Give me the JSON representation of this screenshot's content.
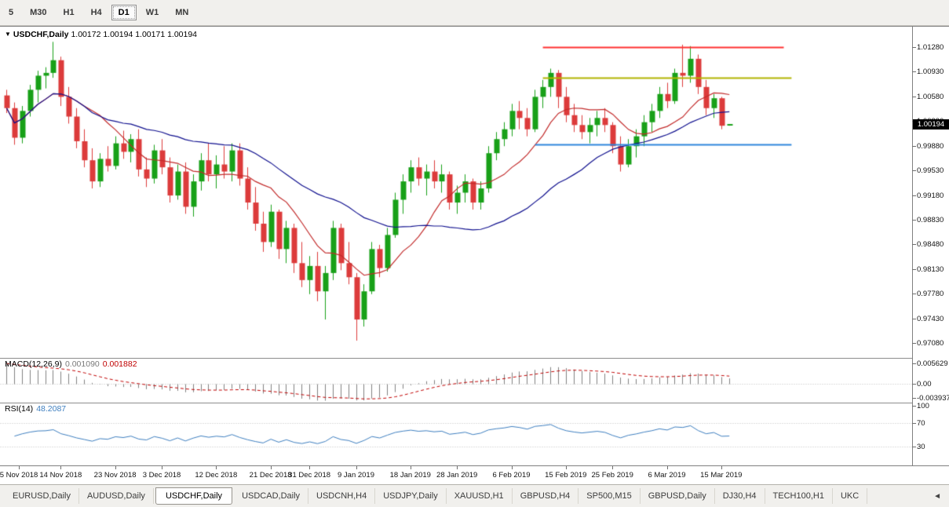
{
  "toolbar": {
    "timeframes": [
      {
        "label": "5",
        "active": false
      },
      {
        "label": "M30",
        "active": false
      },
      {
        "label": "H1",
        "active": false
      },
      {
        "label": "H4",
        "active": false
      },
      {
        "label": "D1",
        "active": true
      },
      {
        "label": "W1",
        "active": false
      },
      {
        "label": "MN",
        "active": false
      }
    ]
  },
  "chart": {
    "marker_glyph": "▼",
    "title": "USDCHF,Daily",
    "ohlc_text": "1.00172 1.00194 1.00171 1.00194",
    "current_price": "1.00194",
    "price_axis": [
      "1.01280",
      "1.00930",
      "1.00580",
      "1.00230",
      "0.99880",
      "0.99530",
      "0.99180",
      "0.98830",
      "0.98480",
      "0.98130",
      "0.97780",
      "0.97430",
      "0.97080"
    ]
  },
  "macd": {
    "label": "MACD(12,26,9)",
    "value_main": "0.001090",
    "value_signal": "0.001882",
    "axis": [
      "0.005629",
      "0.00",
      "-0.003937"
    ]
  },
  "rsi": {
    "label": "RSI(14)",
    "value": "48.2087",
    "axis": [
      "100",
      "70",
      "30"
    ],
    "levels": [
      70,
      30
    ],
    "color": "#3D7EBF"
  },
  "date_axis": [
    {
      "label": "5 Nov 2018",
      "index": 0
    },
    {
      "label": "14 Nov 2018",
      "index": 7
    },
    {
      "label": "23 Nov 2018",
      "index": 14
    },
    {
      "label": "3 Dec 2018",
      "index": 20
    },
    {
      "label": "12 Dec 2018",
      "index": 27
    },
    {
      "label": "21 Dec 2018",
      "index": 34
    },
    {
      "label": "31 Dec 2018",
      "index": 39
    },
    {
      "label": "9 Jan 2019",
      "index": 45
    },
    {
      "label": "18 Jan 2019",
      "index": 52
    },
    {
      "label": "28 Jan 2019",
      "index": 58
    },
    {
      "label": "6 Feb 2019",
      "index": 65
    },
    {
      "label": "15 Feb 2019",
      "index": 72
    },
    {
      "label": "25 Feb 2019",
      "index": 78
    },
    {
      "label": "6 Mar 2019",
      "index": 85
    },
    {
      "label": "15 Mar 2019",
      "index": 92
    }
  ],
  "tabbar": {
    "scroll_left_glyph": "◄",
    "tabs": [
      {
        "label": "EURUSD,Daily",
        "active": false
      },
      {
        "label": "AUDUSD,Daily",
        "active": false
      },
      {
        "label": "USDCHF,Daily",
        "active": true
      },
      {
        "label": "USDCAD,Daily",
        "active": false
      },
      {
        "label": "USDCNH,H4",
        "active": false
      },
      {
        "label": "USDJPY,Daily",
        "active": false
      },
      {
        "label": "XAUUSD,H1",
        "active": false
      },
      {
        "label": "GBPUSD,H4",
        "active": false
      },
      {
        "label": "SP500,M15",
        "active": false
      },
      {
        "label": "GBPUSD,Daily",
        "active": false
      },
      {
        "label": "DJ30,H4",
        "active": false
      },
      {
        "label": "TECH100,H1",
        "active": false
      },
      {
        "label": "UKC",
        "active": false
      }
    ]
  },
  "chart_data": {
    "type": "candlestick",
    "symbol": "USDCHF",
    "timeframe": "Daily",
    "ohlc_current": {
      "open": 1.00172,
      "high": 1.00194,
      "low": 1.00171,
      "close": 1.00194
    },
    "price_range_top": 1.0157,
    "price_range_bottom": 0.9687,
    "up_color": "#18A018",
    "down_color": "#DC3B3B",
    "macd_range": {
      "top": 0.0062,
      "bottom": -0.0046
    },
    "macd_colors": {
      "histogram": "#808080",
      "signal": "#C00000"
    },
    "moving_averages": [
      {
        "period": 10,
        "color": "#C22B2B"
      },
      {
        "period": 30,
        "color": "#10108E"
      }
    ],
    "hlines": [
      {
        "price": 1.0128,
        "color": "#FF3030",
        "from_index": 69,
        "to_index": 100
      },
      {
        "price": 1.0085,
        "color": "#B2B400",
        "from_index": 69,
        "to_index": 101
      },
      {
        "price": 0.999,
        "color": "#2E86DC",
        "from_index": 68,
        "to_index": 101
      }
    ],
    "candles": [
      [
        "05 Nov 2018",
        1.006,
        1.0068,
        1.0035,
        1.0042
      ],
      [
        "06 Nov 2018",
        1.0042,
        1.005,
        0.999,
        1.0
      ],
      [
        "07 Nov 2018",
        1.0,
        1.0045,
        0.9992,
        1.0038
      ],
      [
        "08 Nov 2018",
        1.0038,
        1.0075,
        1.003,
        1.0068
      ],
      [
        "09 Nov 2018",
        1.0068,
        1.0095,
        1.005,
        1.0088
      ],
      [
        "12 Nov 2018",
        1.0088,
        1.01,
        1.007,
        1.0092
      ],
      [
        "13 Nov 2018",
        1.0092,
        1.0136,
        1.0085,
        1.011
      ],
      [
        "14 Nov 2018",
        1.011,
        1.0115,
        1.0045,
        1.0058
      ],
      [
        "15 Nov 2018",
        1.0058,
        1.0072,
        1.002,
        1.003
      ],
      [
        "16 Nov 2018",
        1.003,
        1.0042,
        0.9985,
        0.9995
      ],
      [
        "19 Nov 2018",
        0.9995,
        1.0012,
        0.9958,
        0.9968
      ],
      [
        "20 Nov 2018",
        0.9968,
        0.9985,
        0.9928,
        0.9938
      ],
      [
        "21 Nov 2018",
        0.9938,
        0.9978,
        0.993,
        0.997
      ],
      [
        "22 Nov 2018",
        0.997,
        0.9988,
        0.9952,
        0.996
      ],
      [
        "23 Nov 2018",
        0.996,
        1.0002,
        0.9955,
        0.9992
      ],
      [
        "26 Nov 2018",
        0.9992,
        1.001,
        0.997,
        0.998
      ],
      [
        "27 Nov 2018",
        0.998,
        1.0005,
        0.9965,
        0.9998
      ],
      [
        "28 Nov 2018",
        0.9998,
        1.0012,
        0.9945,
        0.9955
      ],
      [
        "29 Nov 2018",
        0.9955,
        0.9972,
        0.993,
        0.9942
      ],
      [
        "30 Nov 2018",
        0.9942,
        0.999,
        0.9935,
        0.9982
      ],
      [
        "03 Dec 2018",
        0.9982,
        0.9998,
        0.9948,
        0.9958
      ],
      [
        "04 Dec 2018",
        0.9958,
        0.9972,
        0.9908,
        0.9918
      ],
      [
        "05 Dec 2018",
        0.9918,
        0.9962,
        0.9912,
        0.9952
      ],
      [
        "06 Dec 2018",
        0.9952,
        0.9965,
        0.9892,
        0.9902
      ],
      [
        "07 Dec 2018",
        0.9902,
        0.9948,
        0.9888,
        0.9938
      ],
      [
        "10 Dec 2018",
        0.9938,
        0.9978,
        0.9925,
        0.9968
      ],
      [
        "11 Dec 2018",
        0.9968,
        0.9992,
        0.9938,
        0.9948
      ],
      [
        "12 Dec 2018",
        0.9948,
        0.9975,
        0.9928,
        0.9962
      ],
      [
        "13 Dec 2018",
        0.9962,
        0.9988,
        0.9942,
        0.9952
      ],
      [
        "14 Dec 2018",
        0.9952,
        0.9992,
        0.9938,
        0.9982
      ],
      [
        "17 Dec 2018",
        0.9982,
        0.9992,
        0.9932,
        0.9942
      ],
      [
        "18 Dec 2018",
        0.9942,
        0.9958,
        0.9898,
        0.9908
      ],
      [
        "19 Dec 2018",
        0.9908,
        0.993,
        0.9868,
        0.9878
      ],
      [
        "20 Dec 2018",
        0.9878,
        0.9895,
        0.9838,
        0.9852
      ],
      [
        "21 Dec 2018",
        0.9852,
        0.9905,
        0.9845,
        0.9895
      ],
      [
        "24 Dec 2018",
        0.9895,
        0.9898,
        0.9828,
        0.9842
      ],
      [
        "26 Dec 2018",
        0.9842,
        0.9882,
        0.9822,
        0.9872
      ],
      [
        "27 Dec 2018",
        0.9872,
        0.9878,
        0.9808,
        0.9822
      ],
      [
        "28 Dec 2018",
        0.9822,
        0.9852,
        0.9788,
        0.9798
      ],
      [
        "31 Dec 2018",
        0.9798,
        0.9832,
        0.9778,
        0.9818
      ],
      [
        "02 Jan 2019",
        0.9818,
        0.9838,
        0.9768,
        0.9782
      ],
      [
        "03 Jan 2019",
        0.9782,
        0.9818,
        0.9742,
        0.9808
      ],
      [
        "04 Jan 2019",
        0.9808,
        0.9882,
        0.9798,
        0.9872
      ],
      [
        "07 Jan 2019",
        0.9872,
        0.9878,
        0.9812,
        0.9822
      ],
      [
        "08 Jan 2019",
        0.9822,
        0.9852,
        0.9792,
        0.9802
      ],
      [
        "09 Jan 2019",
        0.9802,
        0.9808,
        0.9712,
        0.9742
      ],
      [
        "10 Jan 2019",
        0.9742,
        0.9792,
        0.9732,
        0.9782
      ],
      [
        "11 Jan 2019",
        0.9782,
        0.9852,
        0.9778,
        0.9842
      ],
      [
        "14 Jan 2019",
        0.9842,
        0.9848,
        0.9802,
        0.9815
      ],
      [
        "15 Jan 2019",
        0.9815,
        0.9872,
        0.981,
        0.9862
      ],
      [
        "16 Jan 2019",
        0.9862,
        0.9922,
        0.9858,
        0.9912
      ],
      [
        "17 Jan 2019",
        0.9912,
        0.9948,
        0.9892,
        0.9938
      ],
      [
        "18 Jan 2019",
        0.9938,
        0.9968,
        0.9922,
        0.9958
      ],
      [
        "21 Jan 2019",
        0.9958,
        0.9972,
        0.9932,
        0.9942
      ],
      [
        "22 Jan 2019",
        0.9942,
        0.9962,
        0.9918,
        0.9952
      ],
      [
        "23 Jan 2019",
        0.9952,
        0.9968,
        0.9928,
        0.9938
      ],
      [
        "24 Jan 2019",
        0.9938,
        0.9962,
        0.9922,
        0.9948
      ],
      [
        "25 Jan 2019",
        0.9948,
        0.9952,
        0.9898,
        0.9908
      ],
      [
        "28 Jan 2019",
        0.9908,
        0.9932,
        0.9892,
        0.9922
      ],
      [
        "29 Jan 2019",
        0.9922,
        0.9948,
        0.9908,
        0.9938
      ],
      [
        "30 Jan 2019",
        0.9938,
        0.9942,
        0.9898,
        0.9908
      ],
      [
        "31 Jan 2019",
        0.9908,
        0.9938,
        0.9898,
        0.9928
      ],
      [
        "01 Feb 2019",
        0.9928,
        0.9988,
        0.9922,
        0.9978
      ],
      [
        "04 Feb 2019",
        0.9978,
        1.0008,
        0.9968,
        0.9998
      ],
      [
        "05 Feb 2019",
        0.9998,
        1.0022,
        0.9988,
        1.0012
      ],
      [
        "06 Feb 2019",
        1.0012,
        1.0048,
        1.0002,
        1.0038
      ],
      [
        "07 Feb 2019",
        1.0038,
        1.0052,
        1.0012,
        1.0028
      ],
      [
        "08 Feb 2019",
        1.0028,
        1.0042,
        1.0002,
        1.0012
      ],
      [
        "11 Feb 2019",
        1.0012,
        1.0068,
        1.0008,
        1.0058
      ],
      [
        "12 Feb 2019",
        1.0058,
        1.0082,
        1.0042,
        1.0072
      ],
      [
        "13 Feb 2019",
        1.0072,
        1.0098,
        1.0058,
        1.0092
      ],
      [
        "14 Feb 2019",
        1.0092,
        1.0096,
        1.0042,
        1.0058
      ],
      [
        "15 Feb 2019",
        1.0058,
        1.0072,
        1.0022,
        1.0032
      ],
      [
        "18 Feb 2019",
        1.0032,
        1.0048,
        1.0008,
        1.0018
      ],
      [
        "19 Feb 2019",
        1.0018,
        1.0032,
        0.9998,
        1.0008
      ],
      [
        "20 Feb 2019",
        1.0008,
        1.0028,
        0.9992,
        1.0018
      ],
      [
        "21 Feb 2019",
        1.0018,
        1.0038,
        1.0002,
        1.0028
      ],
      [
        "22 Feb 2019",
        1.0028,
        1.0042,
        1.0008,
        1.0018
      ],
      [
        "25 Feb 2019",
        1.0018,
        1.0022,
        0.9978,
        0.9988
      ],
      [
        "26 Feb 2019",
        0.9988,
        1.0002,
        0.9952,
        0.9962
      ],
      [
        "27 Feb 2019",
        0.9962,
        0.9998,
        0.9958,
        0.9988
      ],
      [
        "28 Feb 2019",
        0.9988,
        1.0012,
        0.9972,
        1.0002
      ],
      [
        "01 Mar 2019",
        1.0002,
        1.0032,
        0.9988,
        1.0022
      ],
      [
        "04 Mar 2019",
        1.0022,
        1.0048,
        1.0008,
        1.0038
      ],
      [
        "05 Mar 2019",
        1.0038,
        1.0072,
        1.0028,
        1.0062
      ],
      [
        "06 Mar 2019",
        1.0062,
        1.0078,
        1.0042,
        1.0052
      ],
      [
        "07 Mar 2019",
        1.0052,
        1.0098,
        1.0048,
        1.0092
      ],
      [
        "08 Mar 2019",
        1.0092,
        1.0132,
        1.0072,
        1.0088
      ],
      [
        "11 Mar 2019",
        1.0088,
        1.013,
        1.0078,
        1.0112
      ],
      [
        "12 Mar 2019",
        1.0112,
        1.0118,
        1.0062,
        1.0072
      ],
      [
        "13 Mar 2019",
        1.0072,
        1.0082,
        1.0032,
        1.0042
      ],
      [
        "14 Mar 2019",
        1.0042,
        1.0062,
        1.0028,
        1.0056
      ],
      [
        "15 Mar 2019",
        1.0056,
        1.0058,
        1.0012,
        1.0017
      ],
      [
        "18 Mar 2019",
        1.00172,
        1.00194,
        1.00171,
        1.00194
      ]
    ]
  }
}
